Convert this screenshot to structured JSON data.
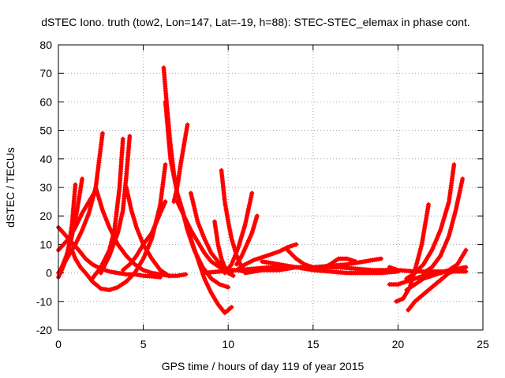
{
  "chart_data": {
    "type": "scatter",
    "title": "dSTEC Iono. truth (tow2, Lon=147, Lat=-19, h=88): STEC-STEC_elemax in phase cont.",
    "xlabel": "GPS time / hours of day 119 of year 2015",
    "ylabel": "dSTEC  / TECUs",
    "xlim": [
      0,
      25
    ],
    "ylim": [
      -20,
      80
    ],
    "x_ticks": [
      0,
      5,
      10,
      15,
      20,
      25
    ],
    "y_ticks": [
      -20,
      -10,
      0,
      10,
      20,
      30,
      40,
      50,
      60,
      70,
      80
    ],
    "grid": true,
    "marker": "+",
    "color": "#ff0000",
    "series": [
      {
        "x": [
          0.0,
          0.3,
          0.6,
          0.9,
          1.2,
          1.6,
          2.0,
          2.5,
          3.0,
          3.5,
          4.0,
          4.5,
          5.0,
          5.5,
          6.0
        ],
        "values": [
          16,
          14,
          12,
          10,
          8,
          5,
          3,
          1.5,
          0.5,
          0,
          -0.5,
          -0.5,
          -1,
          -1.2,
          -1.5
        ]
      },
      {
        "x": [
          0.0,
          0.2,
          0.4,
          0.6,
          0.8,
          1.0
        ],
        "values": [
          -1.5,
          1,
          4,
          9,
          17,
          31
        ]
      },
      {
        "x": [
          0.2,
          0.4,
          0.6,
          0.8,
          1.1,
          1.4
        ],
        "values": [
          2,
          5,
          8,
          13,
          22,
          33
        ]
      },
      {
        "x": [
          0.0,
          0.3,
          0.6,
          1.0,
          1.4,
          1.8,
          2.2,
          2.6
        ],
        "values": [
          0,
          3,
          6,
          10,
          15,
          21,
          30,
          49
        ]
      },
      {
        "x": [
          0.8,
          1.0,
          1.3,
          1.6,
          2.0,
          2.5,
          3.0,
          3.5,
          4.0,
          4.5,
          5.0,
          5.5,
          6.0,
          6.3
        ],
        "values": [
          8,
          5,
          2,
          0,
          -3,
          -5.5,
          -6,
          -5,
          -3,
          0,
          5,
          12,
          24,
          38
        ]
      },
      {
        "x": [
          0.0,
          0.3,
          0.6,
          1.0,
          1.4,
          1.8,
          2.2
        ],
        "values": [
          8,
          10,
          12,
          16,
          21,
          25,
          29
        ]
      },
      {
        "x": [
          2.2,
          2.6,
          3.0,
          3.5,
          4.0,
          4.5,
          5.0,
          5.5,
          6.0,
          6.5,
          7.0,
          7.5
        ],
        "values": [
          30,
          22,
          16,
          10,
          6,
          3,
          1,
          0,
          -0.5,
          -1,
          -1,
          -0.5
        ]
      },
      {
        "x": [
          2.0,
          2.5,
          3.0,
          3.3,
          3.6,
          3.8
        ],
        "values": [
          -2,
          2,
          8,
          15,
          30,
          47
        ]
      },
      {
        "x": [
          2.5,
          3.0,
          3.5,
          3.8,
          4.0,
          4.2
        ],
        "values": [
          0,
          6,
          14,
          22,
          34,
          48
        ]
      },
      {
        "x": [
          4.0,
          4.3,
          4.6,
          5.0,
          5.5,
          6.0,
          6.5
        ],
        "values": [
          30,
          22,
          16,
          10,
          5,
          1,
          -1
        ]
      },
      {
        "x": [
          3.8,
          4.2,
          4.6,
          5.0,
          5.5,
          6.0,
          6.3
        ],
        "values": [
          1,
          3,
          6,
          10,
          14,
          21,
          25
        ]
      },
      {
        "x": [
          6.2,
          6.4,
          6.6,
          6.8,
          7.0,
          7.3,
          7.6,
          8.0,
          8.5,
          9.0,
          9.5,
          10.0
        ],
        "values": [
          72,
          58,
          45,
          35,
          28,
          22,
          15,
          8,
          2,
          -2,
          -4,
          -5
        ]
      },
      {
        "x": [
          6.3,
          6.6,
          7.0,
          7.4,
          7.8,
          8.2,
          8.6,
          9.0,
          9.4,
          9.8,
          10.2
        ],
        "values": [
          60,
          40,
          28,
          20,
          12,
          5,
          -2,
          -7,
          -11,
          -14,
          -12
        ]
      },
      {
        "x": [
          6.8,
          7.0,
          7.2,
          7.4,
          7.6
        ],
        "values": [
          25,
          30,
          38,
          45,
          52
        ]
      },
      {
        "x": [
          7.0,
          7.4,
          7.8,
          8.2,
          8.6,
          9.0,
          9.5,
          10.0,
          10.5,
          11.0,
          11.5
        ],
        "values": [
          25,
          20,
          15,
          11,
          7,
          4,
          2,
          1,
          1,
          0.5,
          0.5
        ]
      },
      {
        "x": [
          7.8,
          8.2,
          8.6,
          9.0,
          9.4,
          9.8,
          10.2
        ],
        "values": [
          28,
          18,
          12,
          7,
          4,
          2,
          0
        ]
      },
      {
        "x": [
          9.2,
          9.4,
          9.6,
          9.8,
          10.0,
          10.3
        ],
        "values": [
          18,
          10,
          5,
          2,
          0,
          -1
        ]
      },
      {
        "x": [
          9.6,
          9.8,
          10.0,
          10.2,
          10.5,
          10.8
        ],
        "values": [
          36,
          25,
          18,
          12,
          6,
          2
        ]
      },
      {
        "x": [
          9.8,
          10.2,
          10.6,
          11.0,
          11.4
        ],
        "values": [
          0,
          3,
          9,
          17,
          28
        ]
      },
      {
        "x": [
          10.5,
          10.8,
          11.1,
          11.4,
          11.7
        ],
        "values": [
          3,
          6,
          10,
          14,
          20
        ]
      },
      {
        "x": [
          8.5,
          9.5,
          10.5,
          11.5,
          12.5,
          13.5,
          14.5,
          15.5,
          16.5,
          17.5,
          18.5,
          19.5
        ],
        "values": [
          0,
          0.5,
          1,
          1.5,
          2,
          2,
          2,
          2,
          2,
          1.5,
          1,
          1
        ]
      },
      {
        "x": [
          10.5,
          11.0,
          11.5,
          12.0,
          12.5,
          13.0,
          13.5,
          14.0
        ],
        "values": [
          1,
          3,
          4.5,
          5.5,
          6.5,
          7.5,
          9,
          10
        ]
      },
      {
        "x": [
          11.0,
          12.0,
          13.0,
          14.0,
          15.0,
          16.0,
          17.0,
          18.0,
          19.0
        ],
        "values": [
          0,
          1,
          1,
          2,
          2,
          2.5,
          3,
          4,
          5
        ]
      },
      {
        "x": [
          12.0,
          13.0,
          14.0,
          15.0,
          16.0,
          17.0,
          18.0,
          19.0,
          20.0
        ],
        "values": [
          4,
          3,
          2,
          1,
          0.5,
          0,
          0,
          0,
          0.5
        ]
      },
      {
        "x": [
          13.5,
          14.0,
          14.5,
          15.0,
          15.5,
          16.0,
          16.5,
          17.0,
          17.5
        ],
        "values": [
          8,
          5,
          3,
          2,
          1.5,
          3,
          5,
          5,
          4
        ]
      },
      {
        "x": [
          19.5,
          20.0,
          20.5,
          21.0,
          21.5,
          22.0,
          22.5,
          23.0,
          23.5,
          24.0
        ],
        "values": [
          -4,
          -4,
          -3,
          -2,
          -1,
          -0.5,
          0,
          1,
          1.5,
          2
        ]
      },
      {
        "x": [
          19.9,
          20.3,
          20.7,
          21.0,
          21.4,
          21.8
        ],
        "values": [
          -10,
          -9,
          -5,
          1,
          10,
          24
        ]
      },
      {
        "x": [
          20.5,
          21.0,
          21.5,
          22.0,
          22.5,
          23.0,
          23.5,
          24.0
        ],
        "values": [
          -6,
          -4,
          -2,
          -1,
          0,
          1,
          3,
          8
        ]
      },
      {
        "x": [
          20.6,
          21.0,
          21.4,
          21.8,
          22.2,
          22.6,
          23.0,
          23.4
        ],
        "values": [
          -13,
          -10,
          -8,
          -6,
          -4,
          -2,
          0,
          1
        ]
      },
      {
        "x": [
          20.5,
          21.0,
          21.5,
          22.0,
          22.5,
          23.0,
          23.3
        ],
        "values": [
          -2,
          0,
          3,
          8,
          15,
          25,
          38
        ]
      },
      {
        "x": [
          21.5,
          22.0,
          22.5,
          23.0,
          23.4,
          23.8
        ],
        "values": [
          0,
          2,
          6,
          13,
          22,
          33
        ]
      },
      {
        "x": [
          19.5,
          20.0,
          21.0,
          22.0,
          23.0,
          24.0
        ],
        "values": [
          2,
          1,
          0.5,
          0.5,
          0.5,
          0.5
        ]
      }
    ]
  }
}
